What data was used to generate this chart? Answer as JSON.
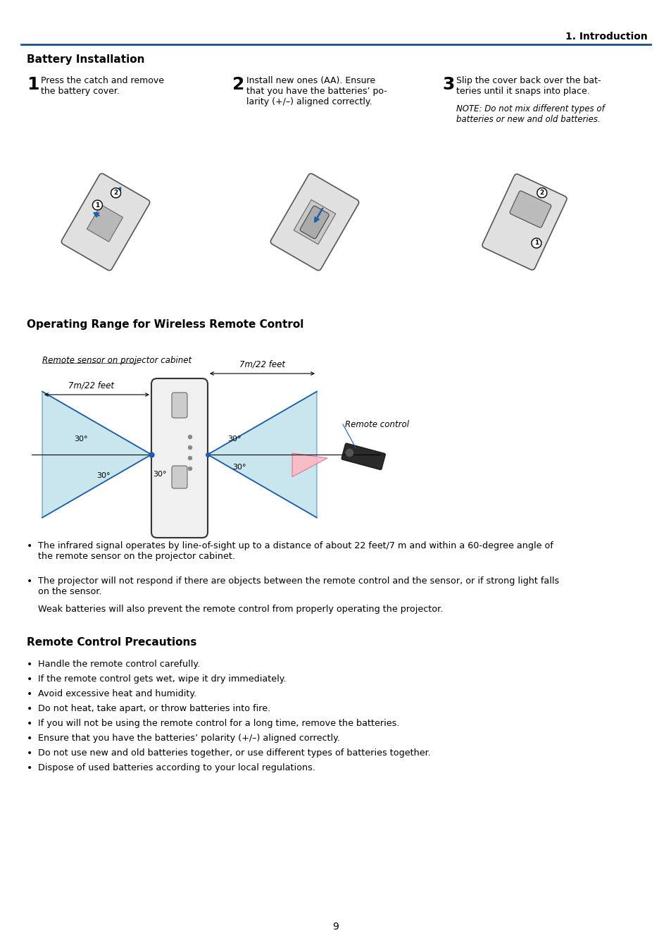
{
  "page_header": "1. Introduction",
  "header_line_color": "#1a4f8a",
  "section1_title": "Battery Installation",
  "step1_num": "1",
  "step1_text": "Press the catch and remove\nthe battery cover.",
  "step2_num": "2",
  "step2_text": "Install new ones (AA). Ensure\nthat you have the batteries’ po-\nlarity (+/–) aligned correctly.",
  "step3_num": "3",
  "step3_text": "Slip the cover back over the bat-\nteries until it snaps into place.",
  "step3_note": "NOTE: Do not mix different types of\nbatteries or new and old batteries.",
  "section2_title": "Operating Range for Wireless Remote Control",
  "label_remote_sensor": "Remote sensor on projector cabinet",
  "label_7m_left": "7m/22 feet",
  "label_7m_right": "7m/22 feet",
  "label_30_deg": "30°",
  "label_remote_control": "Remote control",
  "bullet1": "The infrared signal operates by line-of-sight up to a distance of about 22 feet/7 m and within a 60-degree angle of\nthe remote sensor on the projector cabinet.",
  "bullet2": "The projector will not respond if there are objects between the remote control and the sensor, or if strong light falls\non the sensor.",
  "bullet2b": "Weak batteries will also prevent the remote control from properly operating the projector.",
  "section3_title": "Remote Control Precautions",
  "precautions": [
    "Handle the remote control carefully.",
    "If the remote control gets wet, wipe it dry immediately.",
    "Avoid excessive heat and humidity.",
    "Do not heat, take apart, or throw batteries into fire.",
    "If you will not be using the remote control for a long time, remove the batteries.",
    "Ensure that you have the batteries’ polarity (+/–) aligned correctly.",
    "Do not use new and old batteries together, or use different types of batteries together.",
    "Dispose of used batteries according to your local regulations."
  ],
  "page_number": "9",
  "light_blue": "#add8e6",
  "blue_line": "#1a5fa8",
  "pink": "#ffb6c1",
  "bg_color": "#ffffff"
}
